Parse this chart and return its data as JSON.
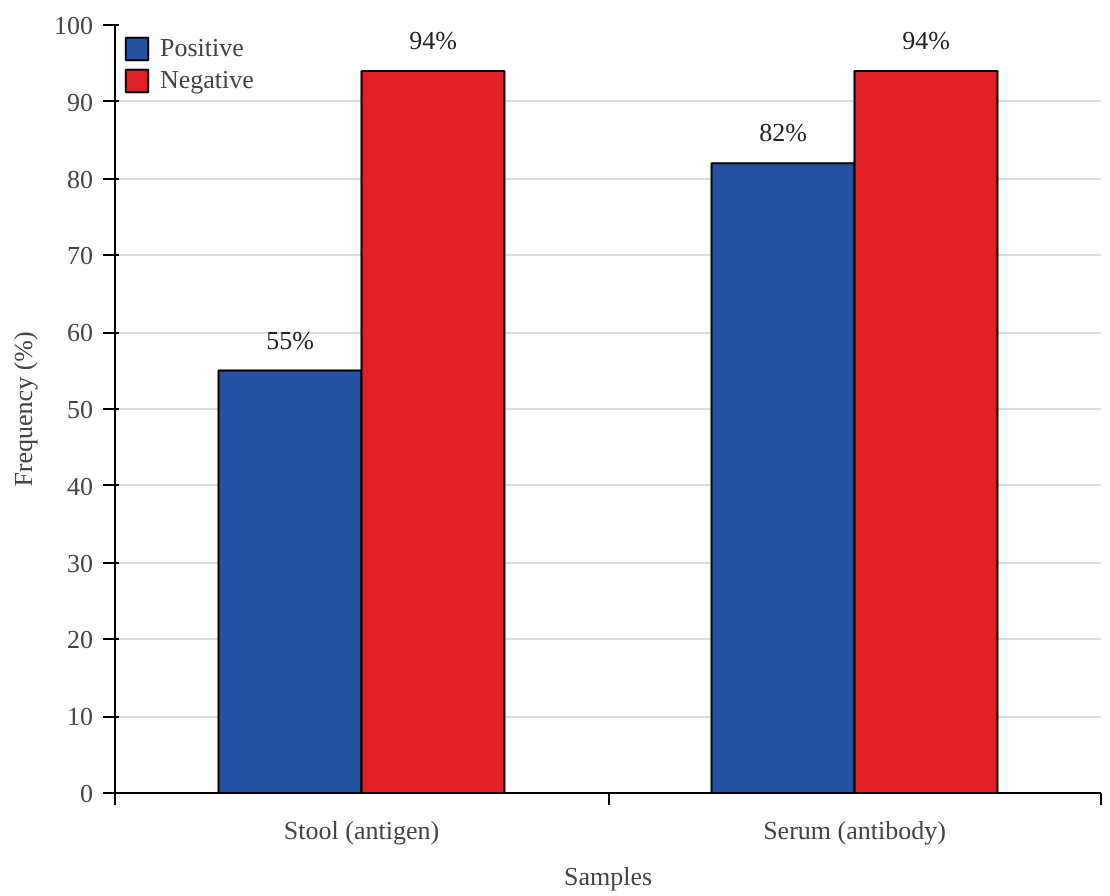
{
  "chart_data": {
    "type": "bar",
    "xlabel": "Samples",
    "ylabel": "Frequency (%)",
    "categories": [
      "Stool (antigen)",
      "Serum (antibody)"
    ],
    "series": [
      {
        "name": "Positive",
        "color": "#2453a3",
        "values": [
          55,
          82
        ],
        "value_labels": [
          "55%",
          "82%"
        ]
      },
      {
        "name": "Negative",
        "color": "#e01f26",
        "values": [
          94,
          94
        ],
        "value_labels": [
          "94%",
          "94%"
        ]
      }
    ],
    "ylim": [
      0,
      100
    ],
    "yticks": [
      0,
      10,
      20,
      30,
      40,
      50,
      60,
      70,
      80,
      90,
      100
    ],
    "grid": "y",
    "legend": "top left"
  }
}
